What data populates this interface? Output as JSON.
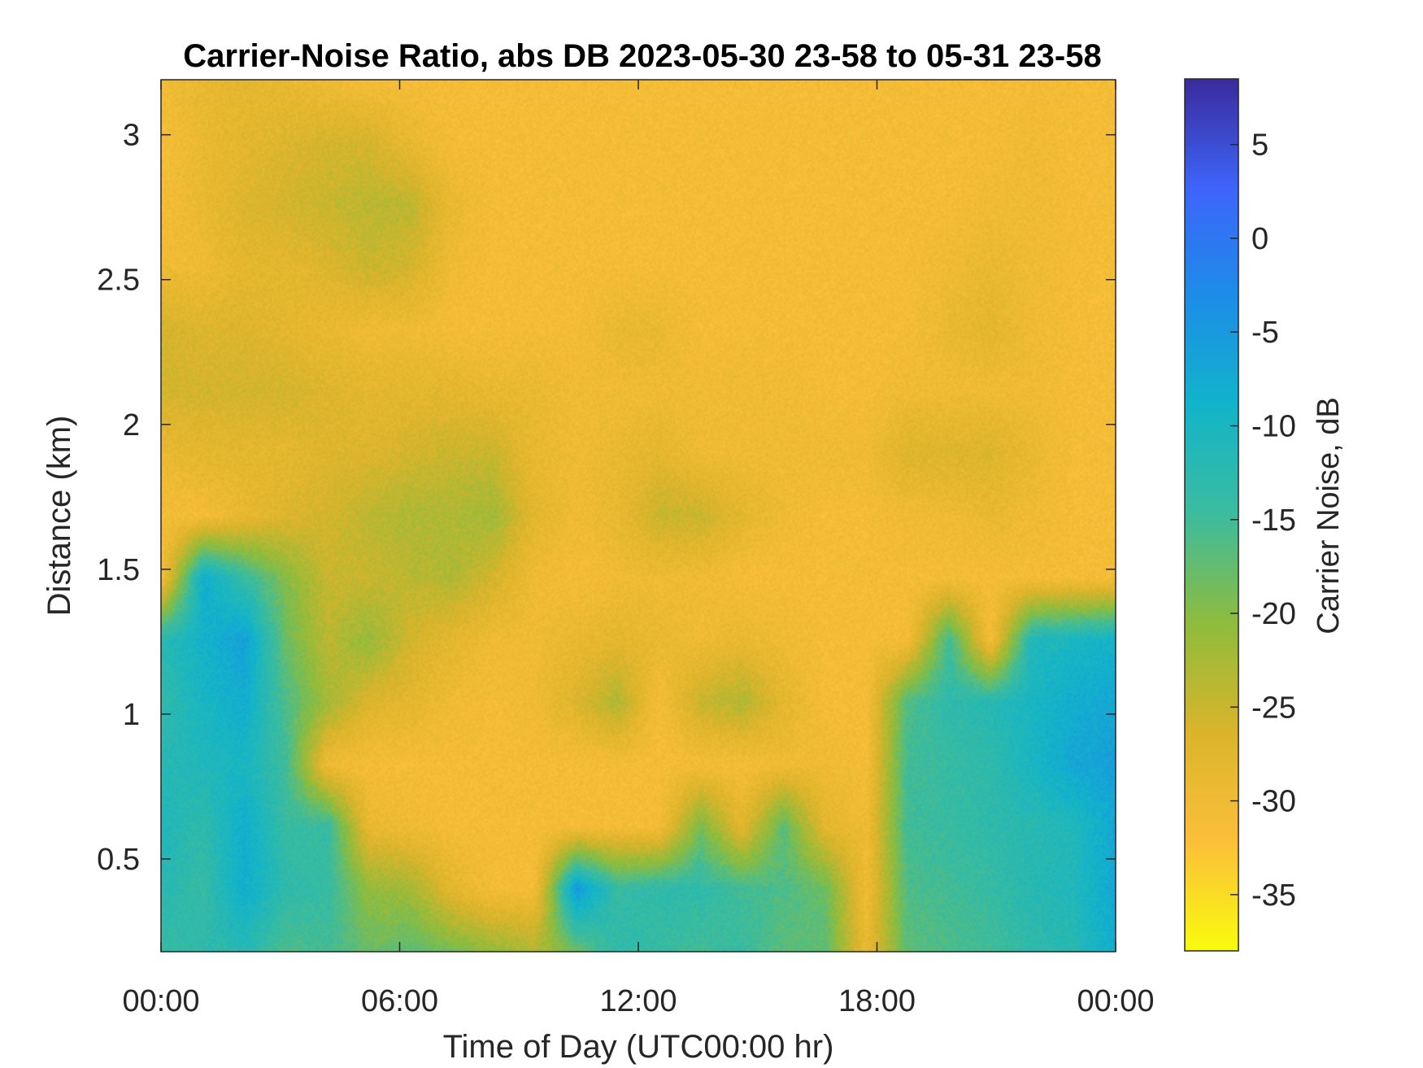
{
  "chart_data": {
    "type": "heatmap",
    "title": "Carrier-Noise Ratio, abs DB 2023-05-30 23-58 to 05-31 23-58",
    "xlabel": "Time of Day (UTC00:00 hr)",
    "ylabel": "Distance (km)",
    "colorbar_label": "Carrier Noise, dB",
    "x_unit": "hours",
    "xlim": [
      0,
      24
    ],
    "ylim": [
      0.18,
      3.19
    ],
    "clim": [
      -38,
      8.5
    ],
    "x_ticks": [
      {
        "value": 0,
        "label": "00:00"
      },
      {
        "value": 6,
        "label": "06:00"
      },
      {
        "value": 12,
        "label": "12:00"
      },
      {
        "value": 18,
        "label": "18:00"
      },
      {
        "value": 24,
        "label": "00:00"
      }
    ],
    "y_ticks": [
      {
        "value": 0.5,
        "label": "0.5"
      },
      {
        "value": 1.0,
        "label": "1"
      },
      {
        "value": 1.5,
        "label": "1.5"
      },
      {
        "value": 2.0,
        "label": "2"
      },
      {
        "value": 2.5,
        "label": "2.5"
      },
      {
        "value": 3.0,
        "label": "3"
      }
    ],
    "colorbar_ticks": [
      {
        "value": 5,
        "label": "5"
      },
      {
        "value": 0,
        "label": "0"
      },
      {
        "value": -5,
        "label": "-5"
      },
      {
        "value": -10,
        "label": "-10"
      },
      {
        "value": -15,
        "label": "-15"
      },
      {
        "value": -20,
        "label": "-20"
      },
      {
        "value": -25,
        "label": "-25"
      },
      {
        "value": -30,
        "label": "-30"
      },
      {
        "value": -35,
        "label": "-35"
      }
    ],
    "colormap": "parula",
    "colormap_stops": [
      "#f9fb0e",
      "#fcbf3a",
      "#dab42b",
      "#8fbc3c",
      "#3cbc9d",
      "#12b4ca",
      "#1c8de8",
      "#3e64fa",
      "#3a2b9c"
    ],
    "values": [
      [
        -14,
        -13,
        -12,
        -16,
        -15,
        -18,
        -17,
        -19,
        -21,
        -23,
        -18,
        -13,
        -14,
        -15,
        -14,
        -17,
        -17,
        -29,
        -17,
        -16,
        -15,
        -13,
        -12,
        -8
      ],
      [
        -12,
        -14,
        -8,
        -13,
        -14,
        -21,
        -22,
        -28,
        -31,
        -31,
        -5,
        -14,
        -13,
        -13,
        -15,
        -16,
        -18,
        -30,
        -16,
        -15,
        -14,
        -12,
        -11,
        -7
      ],
      [
        -11,
        -13,
        -8,
        -14,
        -14,
        -29,
        -30,
        -31,
        -31,
        -31,
        -31,
        -31,
        -31,
        -19,
        -28,
        -17,
        -28,
        -30,
        -15,
        -14,
        -13,
        -12,
        -11,
        -7
      ],
      [
        -12,
        -11,
        -10,
        -15,
        -30,
        -31,
        -31,
        -31,
        -31,
        -31,
        -31,
        -31,
        -31,
        -31,
        -31,
        -30,
        -30,
        -31,
        -15,
        -14,
        -13,
        -10,
        -7,
        -6
      ],
      [
        -13,
        -10,
        -8,
        -16,
        -22,
        -27,
        -28,
        -30,
        -31,
        -30,
        -27,
        -23,
        -31,
        -25,
        -23,
        -28,
        -31,
        -31,
        -16,
        -13,
        -12,
        -10,
        -8,
        -7
      ],
      [
        -12,
        -9,
        -6,
        -18,
        -24,
        -21,
        -26,
        -28,
        -30,
        -30,
        -29,
        -28,
        -29,
        -30,
        -29,
        -30,
        -31,
        -31,
        -31,
        -15,
        -31,
        -11,
        -10,
        -9
      ],
      [
        -31,
        -8,
        -14,
        -20,
        -25,
        -25,
        -24,
        -23,
        -26,
        -30,
        -31,
        -30,
        -30,
        -30,
        -31,
        -31,
        -31,
        -31,
        -31,
        -31,
        -31,
        -31,
        -31,
        -31
      ],
      [
        -31,
        -31,
        -29,
        -27,
        -26,
        -24,
        -23,
        -23,
        -22,
        -28,
        -30,
        -29,
        -25,
        -25,
        -28,
        -30,
        -31,
        -31,
        -30,
        -30,
        -29,
        -30,
        -31,
        -31
      ],
      [
        -29,
        -28,
        -28,
        -28,
        -27,
        -27,
        -26,
        -25,
        -25,
        -29,
        -30,
        -29,
        -28,
        -30,
        -30,
        -30,
        -30,
        -30,
        -27,
        -27,
        -27,
        -29,
        -31,
        -31
      ],
      [
        -26,
        -26,
        -26,
        -26,
        -27,
        -28,
        -28,
        -28,
        -29,
        -29,
        -30,
        -30,
        -30,
        -30,
        -30,
        -30,
        -31,
        -31,
        -30,
        -30,
        -30,
        -30,
        -31,
        -31
      ],
      [
        -26,
        -27,
        -27,
        -28,
        -29,
        -30,
        -30,
        -31,
        -31,
        -31,
        -31,
        -29,
        -29,
        -31,
        -31,
        -31,
        -31,
        -31,
        -31,
        -29,
        -28,
        -30,
        -31,
        -31
      ],
      [
        -30,
        -30,
        -28,
        -28,
        -27,
        -25,
        -26,
        -30,
        -31,
        -31,
        -31,
        -31,
        -31,
        -31,
        -31,
        -31,
        -31,
        -31,
        -31,
        -30,
        -29,
        -30,
        -31,
        -31
      ],
      [
        -31,
        -29,
        -27,
        -26,
        -25,
        -24,
        -24,
        -29,
        -31,
        -31,
        -31,
        -31,
        -31,
        -31,
        -31,
        -31,
        -31,
        -31,
        -31,
        -31,
        -30,
        -30,
        -31,
        -31
      ],
      [
        -31,
        -29,
        -28,
        -27,
        -26,
        -26,
        -29,
        -31,
        -31,
        -31,
        -31,
        -31,
        -31,
        -31,
        -31,
        -31,
        -31,
        -31,
        -31,
        -31,
        -31,
        -30,
        -31,
        -31
      ],
      [
        -30,
        -29,
        -28,
        -29,
        -30,
        -31,
        -31,
        -31,
        -31,
        -31,
        -31,
        -31,
        -31,
        -31,
        -31,
        -31,
        -31,
        -31,
        -31,
        -31,
        -31,
        -31,
        -31,
        -31
      ]
    ]
  }
}
